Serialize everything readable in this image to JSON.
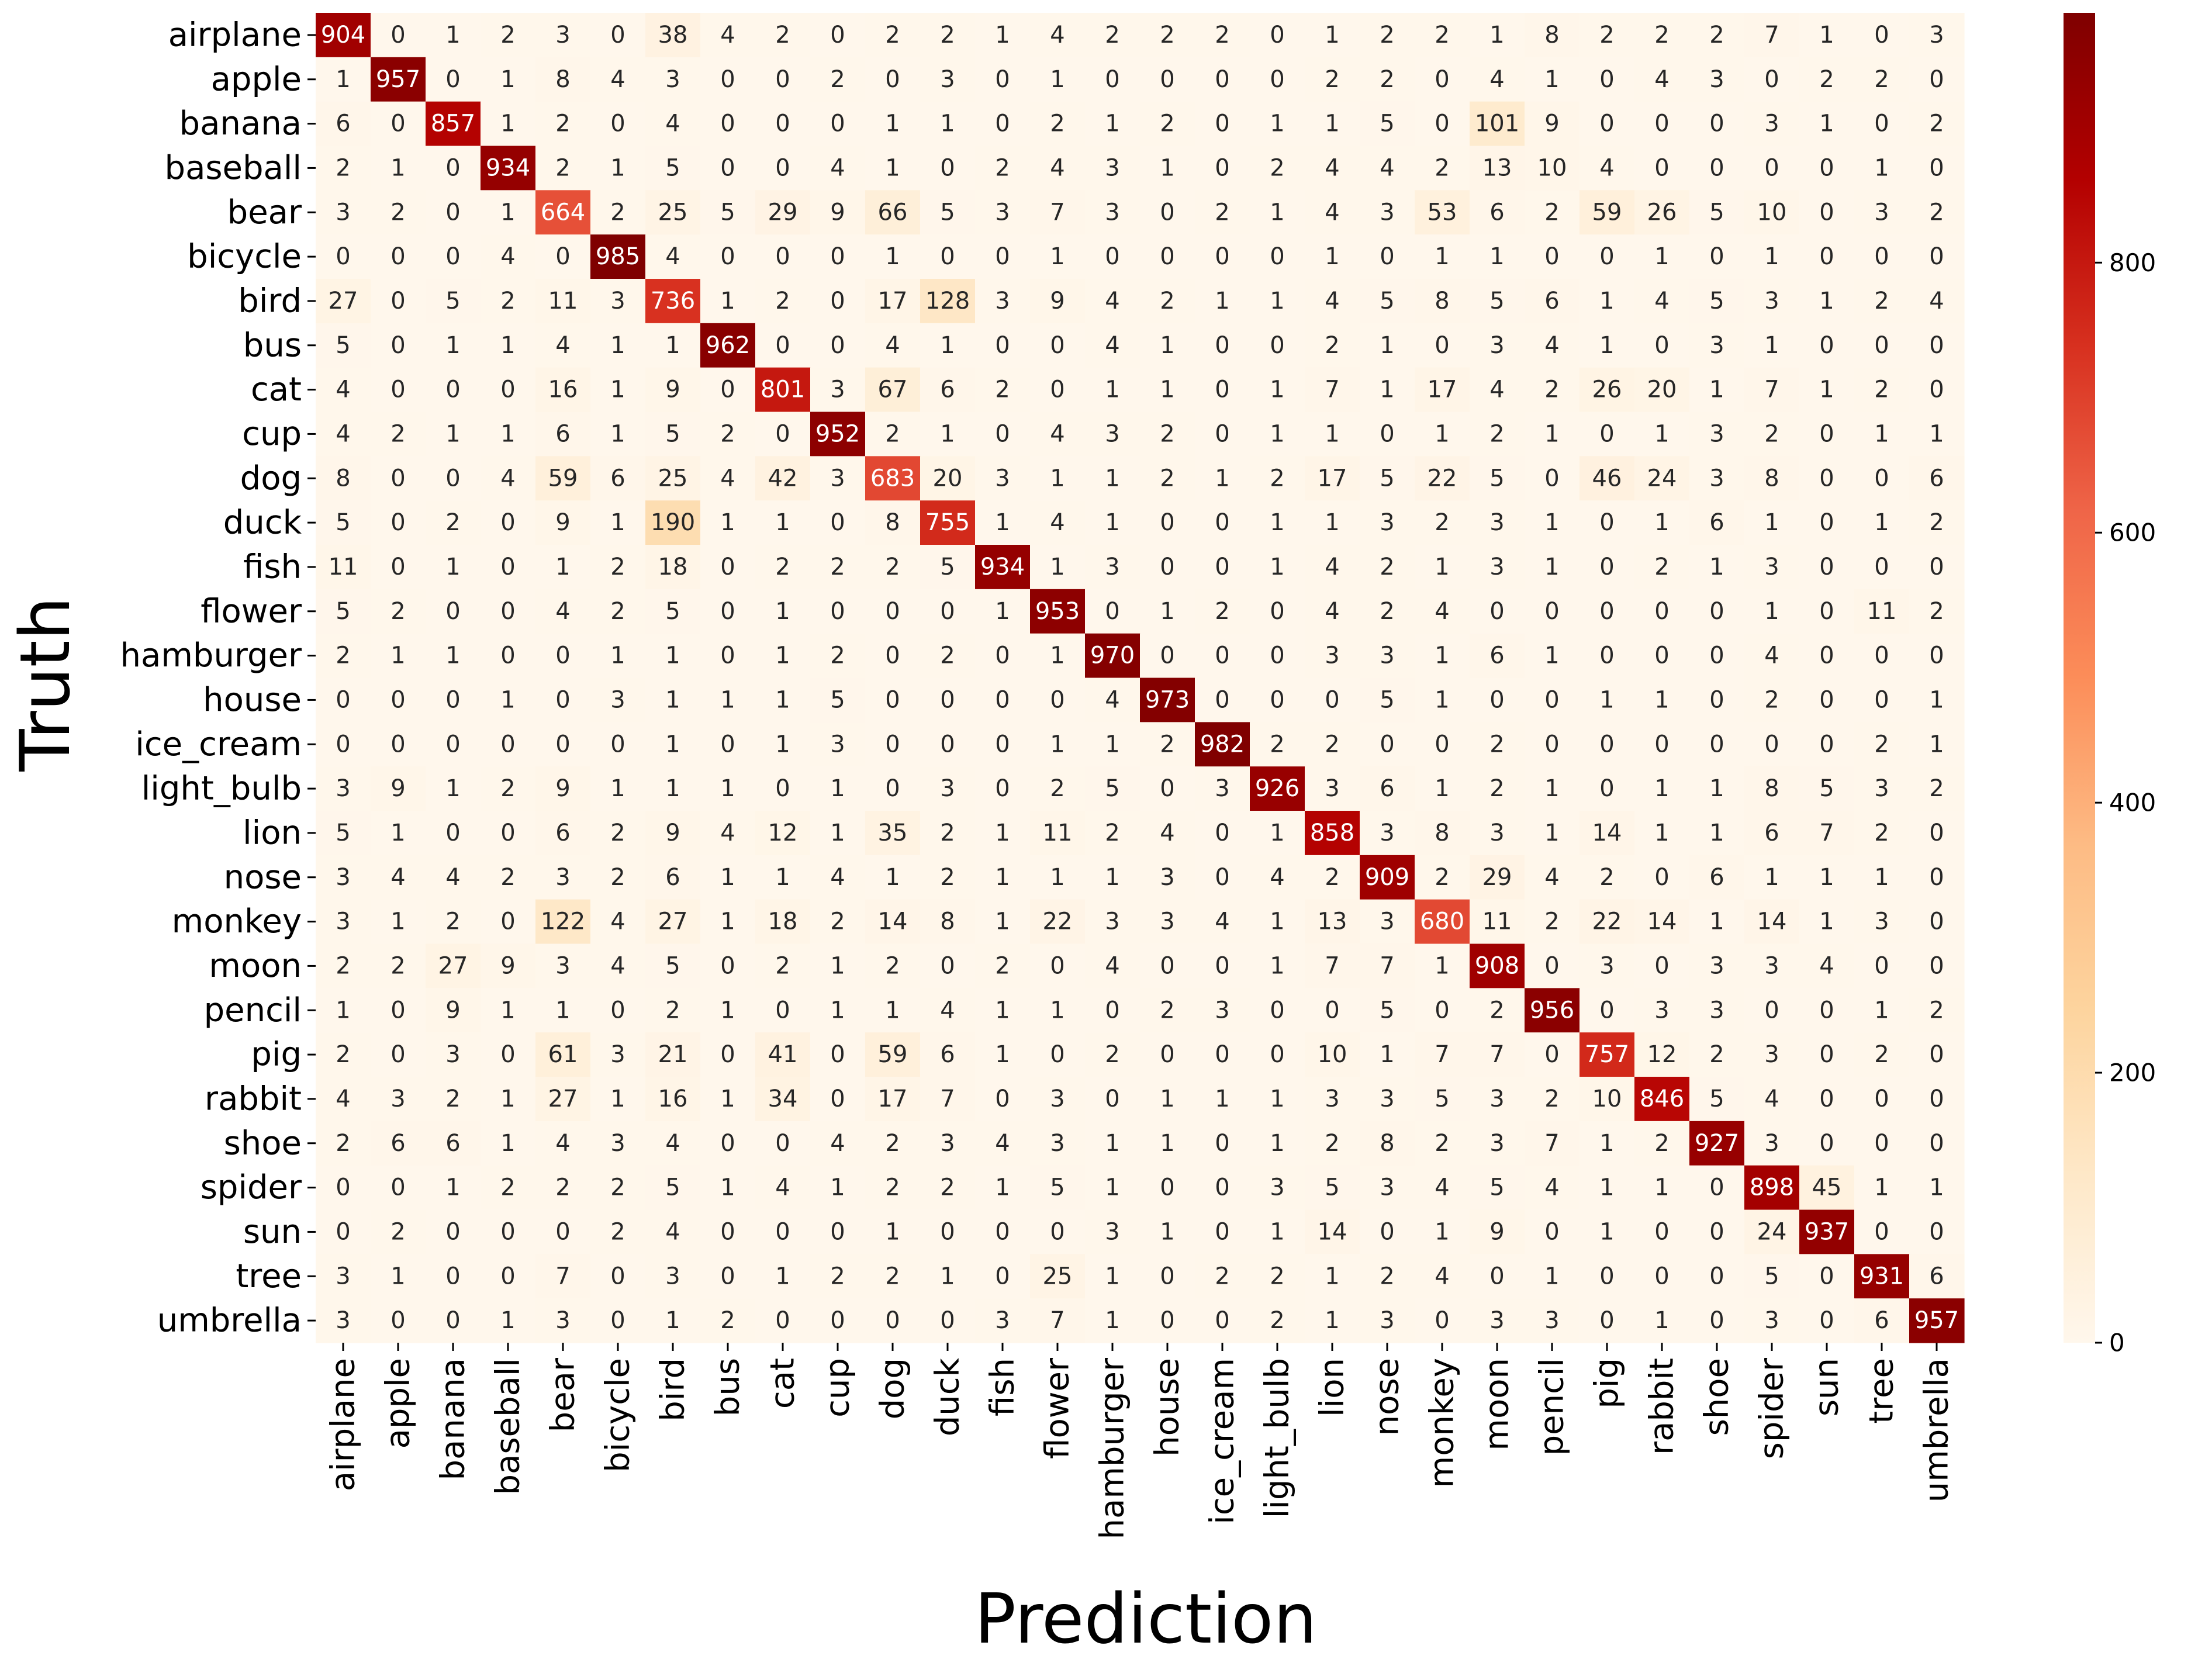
{
  "chart_data": {
    "type": "heatmap",
    "xlabel": "Prediction",
    "ylabel": "Truth",
    "classes": [
      "airplane",
      "apple",
      "banana",
      "baseball",
      "bear",
      "bicycle",
      "bird",
      "bus",
      "cat",
      "cup",
      "dog",
      "duck",
      "fish",
      "flower",
      "hamburger",
      "house",
      "ice_cream",
      "light_bulb",
      "lion",
      "nose",
      "monkey",
      "moon",
      "pencil",
      "pig",
      "rabbit",
      "shoe",
      "spider",
      "sun",
      "tree",
      "umbrella"
    ],
    "colorbar": {
      "min": 0,
      "max": 985,
      "ticks": [
        0,
        200,
        400,
        600,
        800
      ],
      "colormap": "OrRd"
    },
    "matrix": [
      [
        904,
        0,
        1,
        2,
        3,
        0,
        38,
        4,
        2,
        0,
        2,
        2,
        1,
        4,
        2,
        2,
        2,
        0,
        1,
        2,
        2,
        1,
        8,
        2,
        2,
        2,
        7,
        1,
        0,
        3
      ],
      [
        1,
        957,
        0,
        1,
        8,
        4,
        3,
        0,
        0,
        2,
        0,
        3,
        0,
        1,
        0,
        0,
        0,
        0,
        2,
        2,
        0,
        4,
        1,
        0,
        4,
        3,
        0,
        2,
        2,
        0
      ],
      [
        6,
        0,
        857,
        1,
        2,
        0,
        4,
        0,
        0,
        0,
        1,
        1,
        0,
        2,
        1,
        2,
        0,
        1,
        1,
        5,
        0,
        101,
        9,
        0,
        0,
        0,
        3,
        1,
        0,
        2
      ],
      [
        2,
        1,
        0,
        934,
        2,
        1,
        5,
        0,
        0,
        4,
        1,
        0,
        2,
        4,
        3,
        1,
        0,
        2,
        4,
        4,
        2,
        13,
        10,
        4,
        0,
        0,
        0,
        0,
        1,
        0
      ],
      [
        3,
        2,
        0,
        1,
        664,
        2,
        25,
        5,
        29,
        9,
        66,
        5,
        3,
        7,
        3,
        0,
        2,
        1,
        4,
        3,
        53,
        6,
        2,
        59,
        26,
        5,
        10,
        0,
        3,
        2
      ],
      [
        0,
        0,
        0,
        4,
        0,
        985,
        4,
        0,
        0,
        0,
        1,
        0,
        0,
        1,
        0,
        0,
        0,
        0,
        1,
        0,
        1,
        1,
        0,
        0,
        1,
        0,
        1,
        0,
        0,
        0
      ],
      [
        27,
        0,
        5,
        2,
        11,
        3,
        736,
        1,
        2,
        0,
        17,
        128,
        3,
        9,
        4,
        2,
        1,
        1,
        4,
        5,
        8,
        5,
        6,
        1,
        4,
        5,
        3,
        1,
        2,
        4
      ],
      [
        5,
        0,
        1,
        1,
        4,
        1,
        1,
        962,
        0,
        0,
        4,
        1,
        0,
        0,
        4,
        1,
        0,
        0,
        2,
        1,
        0,
        3,
        4,
        1,
        0,
        3,
        1,
        0,
        0,
        0
      ],
      [
        4,
        0,
        0,
        0,
        16,
        1,
        9,
        0,
        801,
        3,
        67,
        6,
        2,
        0,
        1,
        1,
        0,
        1,
        7,
        1,
        17,
        4,
        2,
        26,
        20,
        1,
        7,
        1,
        2,
        0
      ],
      [
        4,
        2,
        1,
        1,
        6,
        1,
        5,
        2,
        0,
        952,
        2,
        1,
        0,
        4,
        3,
        2,
        0,
        1,
        1,
        0,
        1,
        2,
        1,
        0,
        1,
        3,
        2,
        0,
        1,
        1
      ],
      [
        8,
        0,
        0,
        4,
        59,
        6,
        25,
        4,
        42,
        3,
        683,
        20,
        3,
        1,
        1,
        2,
        1,
        2,
        17,
        5,
        22,
        5,
        0,
        46,
        24,
        3,
        8,
        0,
        0,
        6
      ],
      [
        5,
        0,
        2,
        0,
        9,
        1,
        190,
        1,
        1,
        0,
        8,
        755,
        1,
        4,
        1,
        0,
        0,
        1,
        1,
        3,
        2,
        3,
        1,
        0,
        1,
        6,
        1,
        0,
        1,
        2
      ],
      [
        11,
        0,
        1,
        0,
        1,
        2,
        18,
        0,
        2,
        2,
        2,
        5,
        934,
        1,
        3,
        0,
        0,
        1,
        4,
        2,
        1,
        3,
        1,
        0,
        2,
        1,
        3,
        0,
        0,
        0
      ],
      [
        5,
        2,
        0,
        0,
        4,
        2,
        5,
        0,
        1,
        0,
        0,
        0,
        1,
        953,
        0,
        1,
        2,
        0,
        4,
        2,
        4,
        0,
        0,
        0,
        0,
        0,
        1,
        0,
        11,
        2
      ],
      [
        2,
        1,
        1,
        0,
        0,
        1,
        1,
        0,
        1,
        2,
        0,
        2,
        0,
        1,
        970,
        0,
        0,
        0,
        3,
        3,
        1,
        6,
        1,
        0,
        0,
        0,
        4,
        0,
        0,
        0
      ],
      [
        0,
        0,
        0,
        1,
        0,
        3,
        1,
        1,
        1,
        5,
        0,
        0,
        0,
        0,
        4,
        973,
        0,
        0,
        0,
        5,
        1,
        0,
        0,
        1,
        1,
        0,
        2,
        0,
        0,
        1
      ],
      [
        0,
        0,
        0,
        0,
        0,
        0,
        1,
        0,
        1,
        3,
        0,
        0,
        0,
        1,
        1,
        2,
        982,
        2,
        2,
        0,
        0,
        2,
        0,
        0,
        0,
        0,
        0,
        0,
        2,
        1
      ],
      [
        3,
        9,
        1,
        2,
        9,
        1,
        1,
        1,
        0,
        1,
        0,
        3,
        0,
        2,
        5,
        0,
        3,
        926,
        3,
        6,
        1,
        2,
        1,
        0,
        1,
        1,
        8,
        5,
        3,
        2
      ],
      [
        5,
        1,
        0,
        0,
        6,
        2,
        9,
        4,
        12,
        1,
        35,
        2,
        1,
        11,
        2,
        4,
        0,
        1,
        858,
        3,
        8,
        3,
        1,
        14,
        1,
        1,
        6,
        7,
        2,
        0
      ],
      [
        3,
        4,
        4,
        2,
        3,
        2,
        6,
        1,
        1,
        4,
        1,
        2,
        1,
        1,
        1,
        3,
        0,
        4,
        2,
        909,
        2,
        29,
        4,
        2,
        0,
        6,
        1,
        1,
        1,
        0
      ],
      [
        3,
        1,
        2,
        0,
        122,
        4,
        27,
        1,
        18,
        2,
        14,
        8,
        1,
        22,
        3,
        3,
        4,
        1,
        13,
        3,
        680,
        11,
        2,
        22,
        14,
        1,
        14,
        1,
        3,
        0
      ],
      [
        2,
        2,
        27,
        9,
        3,
        4,
        5,
        0,
        2,
        1,
        2,
        0,
        2,
        0,
        4,
        0,
        0,
        1,
        7,
        7,
        1,
        908,
        0,
        3,
        0,
        3,
        3,
        4,
        0,
        0
      ],
      [
        1,
        0,
        9,
        1,
        1,
        0,
        2,
        1,
        0,
        1,
        1,
        4,
        1,
        1,
        0,
        2,
        3,
        0,
        0,
        5,
        0,
        2,
        956,
        0,
        3,
        3,
        0,
        0,
        1,
        2
      ],
      [
        2,
        0,
        3,
        0,
        61,
        3,
        21,
        0,
        41,
        0,
        59,
        6,
        1,
        0,
        2,
        0,
        0,
        0,
        10,
        1,
        7,
        7,
        0,
        757,
        12,
        2,
        3,
        0,
        2,
        0
      ],
      [
        4,
        3,
        2,
        1,
        27,
        1,
        16,
        1,
        34,
        0,
        17,
        7,
        0,
        3,
        0,
        1,
        1,
        1,
        3,
        3,
        5,
        3,
        2,
        10,
        846,
        5,
        4,
        0,
        0,
        0
      ],
      [
        2,
        6,
        6,
        1,
        4,
        3,
        4,
        0,
        0,
        4,
        2,
        3,
        4,
        3,
        1,
        1,
        0,
        1,
        2,
        8,
        2,
        3,
        7,
        1,
        2,
        927,
        3,
        0,
        0,
        0
      ],
      [
        0,
        0,
        1,
        2,
        2,
        2,
        5,
        1,
        4,
        1,
        2,
        2,
        1,
        5,
        1,
        0,
        0,
        3,
        5,
        3,
        4,
        5,
        4,
        1,
        1,
        0,
        898,
        45,
        1,
        1
      ],
      [
        0,
        2,
        0,
        0,
        0,
        2,
        4,
        0,
        0,
        0,
        1,
        0,
        0,
        0,
        3,
        1,
        0,
        1,
        14,
        0,
        1,
        9,
        0,
        1,
        0,
        0,
        24,
        937,
        0,
        0
      ],
      [
        3,
        1,
        0,
        0,
        7,
        0,
        3,
        0,
        1,
        2,
        2,
        1,
        0,
        25,
        1,
        0,
        2,
        2,
        1,
        2,
        4,
        0,
        1,
        0,
        0,
        0,
        5,
        0,
        931,
        6
      ],
      [
        3,
        0,
        0,
        1,
        3,
        0,
        1,
        2,
        0,
        0,
        0,
        0,
        3,
        7,
        1,
        0,
        0,
        2,
        1,
        3,
        0,
        3,
        3,
        0,
        1,
        0,
        3,
        0,
        6,
        957
      ]
    ]
  }
}
